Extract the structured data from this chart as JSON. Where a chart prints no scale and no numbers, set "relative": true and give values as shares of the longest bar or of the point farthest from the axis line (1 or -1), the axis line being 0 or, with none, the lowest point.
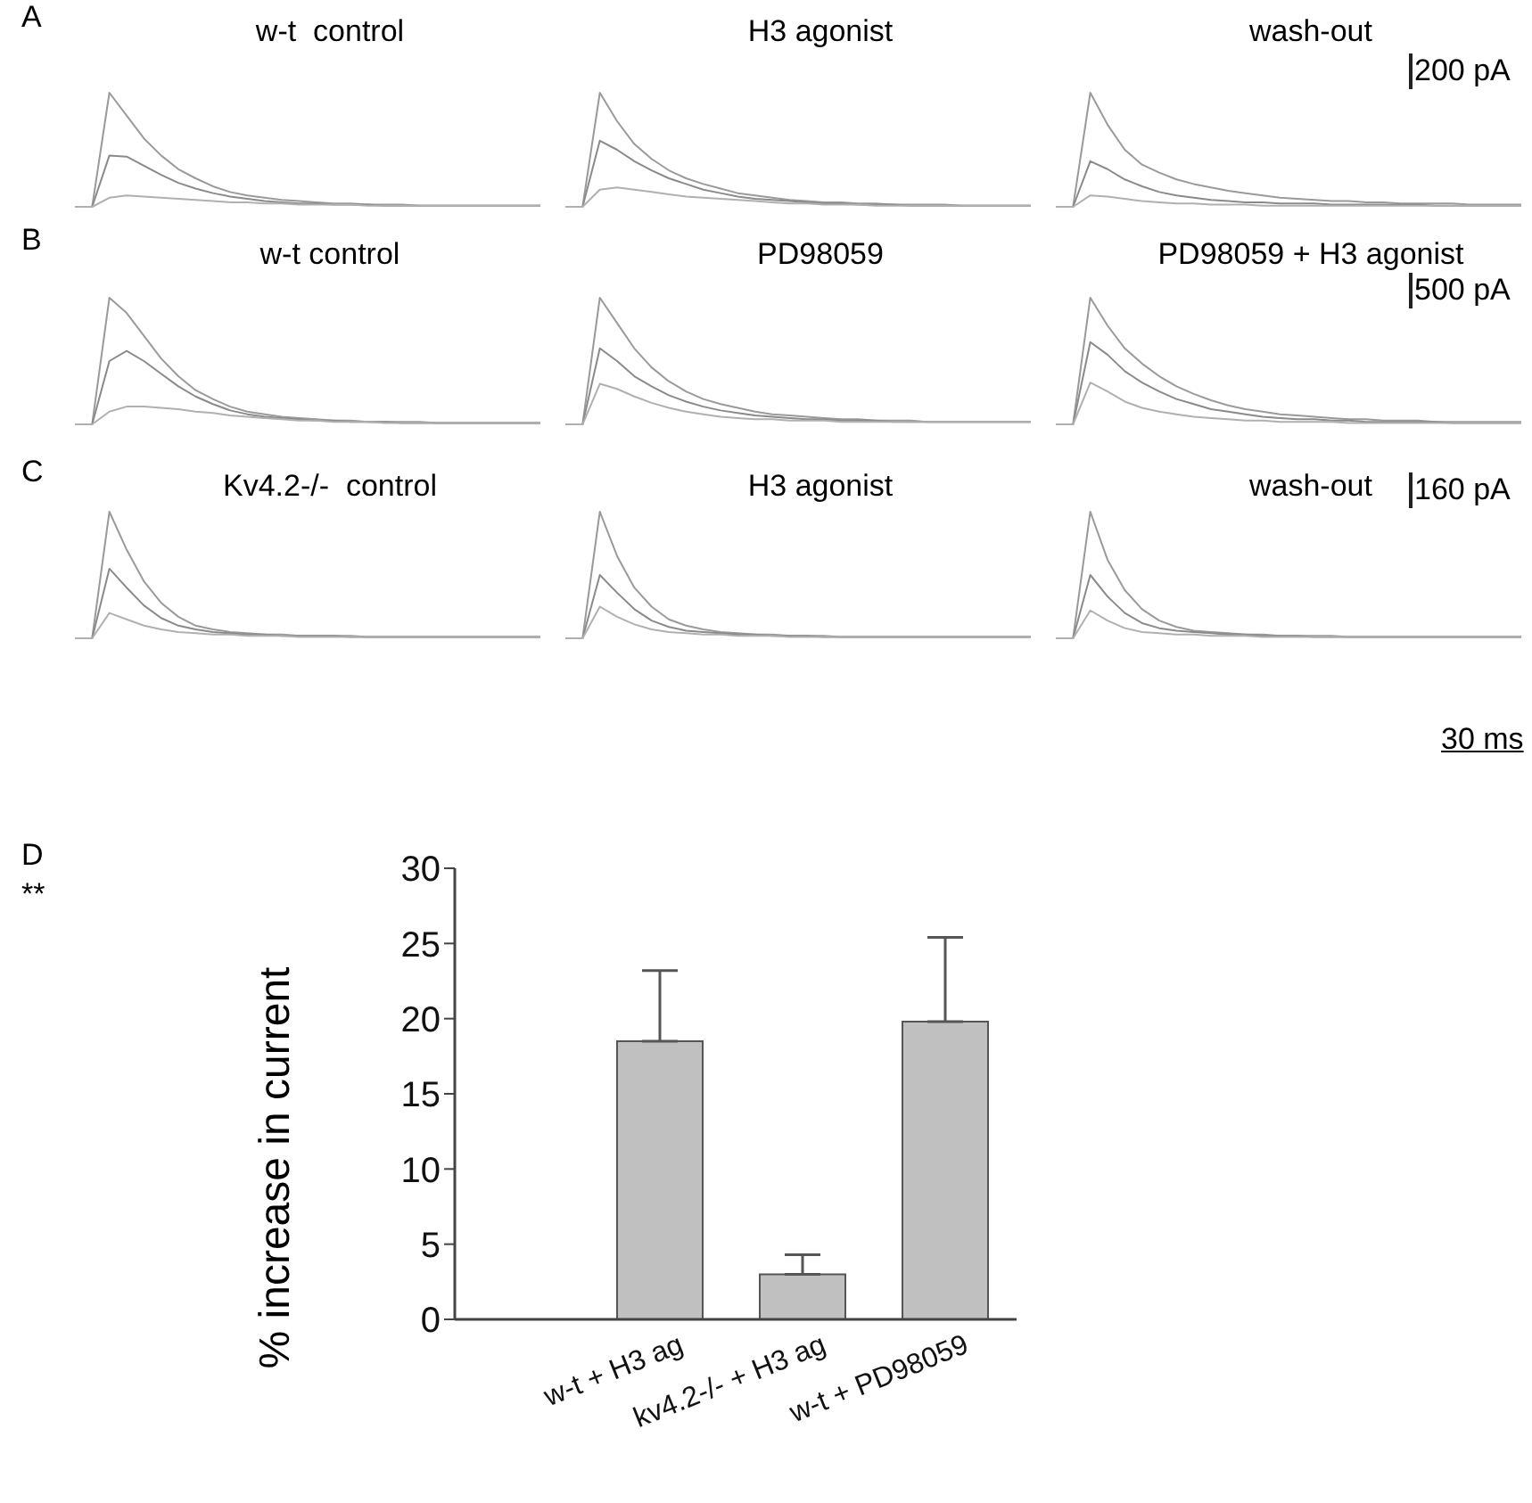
{
  "chart_data": [
    {
      "type": "line",
      "title": "w-t  control",
      "relative": true,
      "annotations": [
        "A"
      ],
      "categories": [
        null,
        null,
        null,
        null,
        null,
        null,
        null,
        null,
        null,
        null,
        null,
        null,
        null,
        null,
        null,
        null,
        null,
        null,
        null,
        null,
        null,
        null,
        null,
        null,
        null,
        null,
        null,
        null
      ],
      "series": [
        {
          "color": "#9a9a9a",
          "values": [
            0,
            0,
            1,
            0.8,
            0.6,
            0.45,
            0.33,
            0.25,
            0.18,
            0.13,
            0.1,
            0.08,
            0.06,
            0.05,
            0.04,
            0.03,
            0.03,
            0.02,
            0.02,
            0.02,
            0.01,
            0.01,
            0.01,
            0.01,
            0.01,
            0.01,
            0.01,
            0.01
          ]
        },
        {
          "color": "#8a8a8a",
          "values": [
            0,
            0,
            0.45,
            0.44,
            0.36,
            0.28,
            0.21,
            0.16,
            0.12,
            0.09,
            0.07,
            0.05,
            0.04,
            0.03,
            0.03,
            0.02,
            0.02,
            0.02,
            0.01,
            0.01,
            0.01,
            0.01,
            0.01,
            0.01,
            0.01,
            0.01,
            0.01,
            0.01
          ]
        },
        {
          "color": "#b0b0b0",
          "values": [
            0,
            0,
            0.08,
            0.1,
            0.09,
            0.08,
            0.07,
            0.06,
            0.05,
            0.04,
            0.04,
            0.03,
            0.03,
            0.02,
            0.02,
            0.02,
            0.02,
            0.01,
            0.01,
            0.01,
            0.01,
            0.01,
            0.01,
            0.01,
            0.01,
            0.01,
            0.01,
            0.01
          ]
        }
      ]
    },
    {
      "type": "line",
      "title": "H3 agonist",
      "relative": true,
      "categories": [
        null,
        null,
        null,
        null,
        null,
        null,
        null,
        null,
        null,
        null,
        null,
        null,
        null,
        null,
        null,
        null,
        null,
        null,
        null,
        null,
        null,
        null,
        null,
        null,
        null,
        null,
        null,
        null
      ],
      "series": [
        {
          "color": "#9a9a9a",
          "values": [
            0,
            0,
            1,
            0.75,
            0.55,
            0.42,
            0.32,
            0.25,
            0.2,
            0.16,
            0.12,
            0.1,
            0.08,
            0.06,
            0.05,
            0.04,
            0.04,
            0.03,
            0.03,
            0.02,
            0.02,
            0.02,
            0.02,
            0.01,
            0.01,
            0.01,
            0.01,
            0.01
          ]
        },
        {
          "color": "#8a8a8a",
          "values": [
            0,
            0,
            0.58,
            0.5,
            0.4,
            0.32,
            0.25,
            0.2,
            0.15,
            0.12,
            0.09,
            0.07,
            0.06,
            0.05,
            0.04,
            0.03,
            0.03,
            0.02,
            0.02,
            0.02,
            0.01,
            0.01,
            0.01,
            0.01,
            0.01,
            0.01,
            0.01,
            0.01
          ]
        },
        {
          "color": "#b0b0b0",
          "values": [
            0,
            0,
            0.15,
            0.17,
            0.15,
            0.13,
            0.11,
            0.09,
            0.08,
            0.07,
            0.06,
            0.05,
            0.04,
            0.03,
            0.03,
            0.02,
            0.02,
            0.02,
            0.01,
            0.01,
            0.01,
            0.01,
            0.01,
            0.01,
            0.01,
            0.01,
            0.01,
            0.01
          ]
        }
      ]
    },
    {
      "type": "line",
      "title": "wash-out",
      "relative": true,
      "annotations": [
        "200 pA"
      ],
      "categories": [
        null,
        null,
        null,
        null,
        null,
        null,
        null,
        null,
        null,
        null,
        null,
        null,
        null,
        null,
        null,
        null,
        null,
        null,
        null,
        null,
        null,
        null,
        null,
        null,
        null,
        null,
        null,
        null
      ],
      "series": [
        {
          "color": "#9a9a9a",
          "values": [
            0,
            0,
            1,
            0.72,
            0.5,
            0.37,
            0.3,
            0.24,
            0.2,
            0.17,
            0.14,
            0.12,
            0.1,
            0.08,
            0.07,
            0.06,
            0.05,
            0.05,
            0.04,
            0.04,
            0.03,
            0.03,
            0.03,
            0.03,
            0.02,
            0.02,
            0.02,
            0.02
          ]
        },
        {
          "color": "#8a8a8a",
          "values": [
            0,
            0,
            0.4,
            0.33,
            0.24,
            0.18,
            0.13,
            0.1,
            0.08,
            0.06,
            0.05,
            0.04,
            0.04,
            0.03,
            0.03,
            0.03,
            0.02,
            0.02,
            0.02,
            0.02,
            0.02,
            0.02,
            0.01,
            0.01,
            0.01,
            0.01,
            0.01,
            0.01
          ]
        },
        {
          "color": "#b0b0b0",
          "values": [
            0,
            0,
            0.1,
            0.09,
            0.07,
            0.05,
            0.04,
            0.03,
            0.03,
            0.02,
            0.02,
            0.02,
            0.01,
            0.01,
            0.01,
            0.01,
            0.01,
            0.01,
            0.01,
            0.01,
            0.01,
            0.01,
            0.01,
            0.01,
            0.01,
            0.01,
            0.01,
            0.01
          ]
        }
      ]
    },
    {
      "type": "line",
      "title": "w-t control",
      "relative": true,
      "annotations": [
        "B"
      ],
      "categories": [
        null,
        null,
        null,
        null,
        null,
        null,
        null,
        null,
        null,
        null,
        null,
        null,
        null,
        null,
        null,
        null,
        null,
        null,
        null,
        null,
        null,
        null,
        null,
        null,
        null,
        null,
        null,
        null
      ],
      "series": [
        {
          "color": "#9a9a9a",
          "values": [
            0,
            0,
            1,
            0.88,
            0.7,
            0.52,
            0.38,
            0.27,
            0.2,
            0.14,
            0.1,
            0.08,
            0.06,
            0.05,
            0.04,
            0.03,
            0.03,
            0.02,
            0.02,
            0.02,
            0.02,
            0.01,
            0.01,
            0.01,
            0.01,
            0.01,
            0.01,
            0.01
          ]
        },
        {
          "color": "#8a8a8a",
          "values": [
            0,
            0,
            0.5,
            0.58,
            0.5,
            0.4,
            0.3,
            0.22,
            0.16,
            0.11,
            0.08,
            0.06,
            0.05,
            0.04,
            0.03,
            0.03,
            0.02,
            0.02,
            0.02,
            0.01,
            0.01,
            0.01,
            0.01,
            0.01,
            0.01,
            0.01,
            0.01,
            0.01
          ]
        },
        {
          "color": "#b0b0b0",
          "values": [
            0,
            0,
            0.1,
            0.14,
            0.14,
            0.13,
            0.12,
            0.1,
            0.09,
            0.07,
            0.06,
            0.05,
            0.04,
            0.03,
            0.03,
            0.02,
            0.02,
            0.02,
            0.01,
            0.01,
            0.01,
            0.01,
            0.01,
            0.01,
            0.01,
            0.01,
            0.01,
            0.01
          ]
        }
      ]
    },
    {
      "type": "line",
      "title": "PD98059",
      "relative": true,
      "categories": [
        null,
        null,
        null,
        null,
        null,
        null,
        null,
        null,
        null,
        null,
        null,
        null,
        null,
        null,
        null,
        null,
        null,
        null,
        null,
        null,
        null,
        null,
        null,
        null,
        null,
        null,
        null,
        null
      ],
      "series": [
        {
          "color": "#9a9a9a",
          "values": [
            0,
            0,
            1,
            0.8,
            0.6,
            0.45,
            0.34,
            0.26,
            0.2,
            0.16,
            0.13,
            0.1,
            0.08,
            0.07,
            0.06,
            0.05,
            0.04,
            0.04,
            0.03,
            0.03,
            0.03,
            0.02,
            0.02,
            0.02,
            0.02,
            0.02,
            0.02,
            0.02
          ]
        },
        {
          "color": "#8a8a8a",
          "values": [
            0,
            0,
            0.6,
            0.5,
            0.38,
            0.3,
            0.23,
            0.18,
            0.14,
            0.11,
            0.09,
            0.07,
            0.06,
            0.05,
            0.04,
            0.04,
            0.03,
            0.03,
            0.03,
            0.02,
            0.02,
            0.02,
            0.02,
            0.02,
            0.02,
            0.02,
            0.02,
            0.02
          ]
        },
        {
          "color": "#b0b0b0",
          "values": [
            0,
            0,
            0.32,
            0.28,
            0.22,
            0.17,
            0.13,
            0.1,
            0.08,
            0.06,
            0.05,
            0.04,
            0.04,
            0.03,
            0.03,
            0.03,
            0.02,
            0.02,
            0.02,
            0.02,
            0.02,
            0.02,
            0.02,
            0.02,
            0.02,
            0.02,
            0.02,
            0.02
          ]
        }
      ]
    },
    {
      "type": "line",
      "title": "PD98059 + H3 agonist",
      "relative": true,
      "annotations": [
        "500 pA"
      ],
      "categories": [
        null,
        null,
        null,
        null,
        null,
        null,
        null,
        null,
        null,
        null,
        null,
        null,
        null,
        null,
        null,
        null,
        null,
        null,
        null,
        null,
        null,
        null,
        null,
        null,
        null,
        null,
        null,
        null
      ],
      "series": [
        {
          "color": "#9a9a9a",
          "values": [
            0,
            0,
            1,
            0.78,
            0.6,
            0.48,
            0.38,
            0.3,
            0.24,
            0.19,
            0.15,
            0.12,
            0.1,
            0.08,
            0.07,
            0.06,
            0.05,
            0.04,
            0.04,
            0.03,
            0.03,
            0.03,
            0.02,
            0.02,
            0.02,
            0.02,
            0.02,
            0.02
          ]
        },
        {
          "color": "#8a8a8a",
          "values": [
            0,
            0,
            0.65,
            0.55,
            0.42,
            0.33,
            0.26,
            0.2,
            0.16,
            0.12,
            0.1,
            0.08,
            0.06,
            0.05,
            0.04,
            0.04,
            0.03,
            0.03,
            0.02,
            0.02,
            0.02,
            0.02,
            0.02,
            0.01,
            0.01,
            0.01,
            0.01,
            0.01
          ]
        },
        {
          "color": "#b0b0b0",
          "values": [
            0,
            0,
            0.33,
            0.26,
            0.18,
            0.13,
            0.1,
            0.08,
            0.06,
            0.05,
            0.04,
            0.03,
            0.03,
            0.02,
            0.02,
            0.02,
            0.02,
            0.01,
            0.01,
            0.01,
            0.01,
            0.01,
            0.01,
            0.01,
            0.01,
            0.01,
            0.01,
            0.01
          ]
        }
      ]
    },
    {
      "type": "line",
      "title": "Kv4.2-/-  control",
      "relative": true,
      "annotations": [
        "C"
      ],
      "categories": [
        null,
        null,
        null,
        null,
        null,
        null,
        null,
        null,
        null,
        null,
        null,
        null,
        null,
        null,
        null,
        null,
        null,
        null,
        null,
        null,
        null,
        null,
        null,
        null,
        null,
        null,
        null,
        null
      ],
      "series": [
        {
          "color": "#9a9a9a",
          "values": [
            0,
            0,
            1,
            0.7,
            0.45,
            0.28,
            0.17,
            0.1,
            0.07,
            0.05,
            0.04,
            0.03,
            0.03,
            0.02,
            0.02,
            0.02,
            0.02,
            0.01,
            0.01,
            0.01,
            0.01,
            0.01,
            0.01,
            0.01,
            0.01,
            0.01,
            0.01,
            0.01
          ]
        },
        {
          "color": "#8a8a8a",
          "values": [
            0,
            0,
            0.55,
            0.4,
            0.26,
            0.16,
            0.1,
            0.07,
            0.05,
            0.04,
            0.03,
            0.03,
            0.02,
            0.02,
            0.02,
            0.02,
            0.01,
            0.01,
            0.01,
            0.01,
            0.01,
            0.01,
            0.01,
            0.01,
            0.01,
            0.01,
            0.01,
            0.01
          ]
        },
        {
          "color": "#b0b0b0",
          "values": [
            0,
            0,
            0.2,
            0.15,
            0.1,
            0.07,
            0.05,
            0.04,
            0.03,
            0.03,
            0.02,
            0.02,
            0.02,
            0.01,
            0.01,
            0.01,
            0.01,
            0.01,
            0.01,
            0.01,
            0.01,
            0.01,
            0.01,
            0.01,
            0.01,
            0.01,
            0.01,
            0.01
          ]
        }
      ]
    },
    {
      "type": "line",
      "title": "H3 agonist",
      "relative": true,
      "categories": [
        null,
        null,
        null,
        null,
        null,
        null,
        null,
        null,
        null,
        null,
        null,
        null,
        null,
        null,
        null,
        null,
        null,
        null,
        null,
        null,
        null,
        null,
        null,
        null,
        null,
        null,
        null,
        null
      ],
      "series": [
        {
          "color": "#9a9a9a",
          "values": [
            0,
            0,
            1,
            0.65,
            0.4,
            0.25,
            0.15,
            0.1,
            0.07,
            0.05,
            0.04,
            0.03,
            0.03,
            0.02,
            0.02,
            0.02,
            0.01,
            0.01,
            0.01,
            0.01,
            0.01,
            0.01,
            0.01,
            0.01,
            0.01,
            0.01,
            0.01,
            0.01
          ]
        },
        {
          "color": "#8a8a8a",
          "values": [
            0,
            0,
            0.5,
            0.36,
            0.23,
            0.14,
            0.09,
            0.06,
            0.05,
            0.04,
            0.03,
            0.03,
            0.02,
            0.02,
            0.02,
            0.01,
            0.01,
            0.01,
            0.01,
            0.01,
            0.01,
            0.01,
            0.01,
            0.01,
            0.01,
            0.01,
            0.01,
            0.01
          ]
        },
        {
          "color": "#b0b0b0",
          "values": [
            0,
            0,
            0.25,
            0.17,
            0.11,
            0.07,
            0.05,
            0.04,
            0.03,
            0.03,
            0.02,
            0.02,
            0.02,
            0.01,
            0.01,
            0.01,
            0.01,
            0.01,
            0.01,
            0.01,
            0.01,
            0.01,
            0.01,
            0.01,
            0.01,
            0.01,
            0.01,
            0.01
          ]
        }
      ]
    },
    {
      "type": "line",
      "title": "wash-out",
      "relative": true,
      "annotations": [
        "160 pA",
        "30 ms"
      ],
      "categories": [
        null,
        null,
        null,
        null,
        null,
        null,
        null,
        null,
        null,
        null,
        null,
        null,
        null,
        null,
        null,
        null,
        null,
        null,
        null,
        null,
        null,
        null,
        null,
        null,
        null,
        null,
        null,
        null
      ],
      "series": [
        {
          "color": "#9a9a9a",
          "values": [
            0,
            0,
            1,
            0.62,
            0.38,
            0.23,
            0.14,
            0.09,
            0.06,
            0.05,
            0.04,
            0.03,
            0.03,
            0.02,
            0.02,
            0.02,
            0.02,
            0.01,
            0.01,
            0.01,
            0.01,
            0.01,
            0.01,
            0.01,
            0.01,
            0.01,
            0.01,
            0.01
          ]
        },
        {
          "color": "#8a8a8a",
          "values": [
            0,
            0,
            0.5,
            0.33,
            0.2,
            0.12,
            0.08,
            0.06,
            0.05,
            0.04,
            0.03,
            0.03,
            0.02,
            0.02,
            0.02,
            0.01,
            0.01,
            0.01,
            0.01,
            0.01,
            0.01,
            0.01,
            0.01,
            0.01,
            0.01,
            0.01,
            0.01,
            0.01
          ]
        },
        {
          "color": "#b0b0b0",
          "values": [
            0,
            0,
            0.22,
            0.14,
            0.08,
            0.05,
            0.04,
            0.03,
            0.03,
            0.02,
            0.02,
            0.02,
            0.01,
            0.01,
            0.01,
            0.01,
            0.01,
            0.01,
            0.01,
            0.01,
            0.01,
            0.01,
            0.01,
            0.01,
            0.01,
            0.01,
            0.01,
            0.01
          ]
        }
      ]
    },
    {
      "type": "bar",
      "ylabel": "% increase in current",
      "annotations": [
        "D",
        "**"
      ],
      "categories": [
        "w-t + H3 ag",
        "kv4.2-/- + H3 ag",
        "w-t + PD98059"
      ],
      "values": [
        18.5,
        3.0,
        19.8
      ],
      "errors": [
        [
          18.5,
          23.2
        ],
        [
          3.0,
          4.3
        ],
        [
          19.8,
          25.4
        ]
      ],
      "color": "#c0c0c0",
      "ylim": [
        0,
        30
      ],
      "yticks": [
        0,
        5,
        10,
        15,
        20,
        25,
        30
      ]
    }
  ]
}
